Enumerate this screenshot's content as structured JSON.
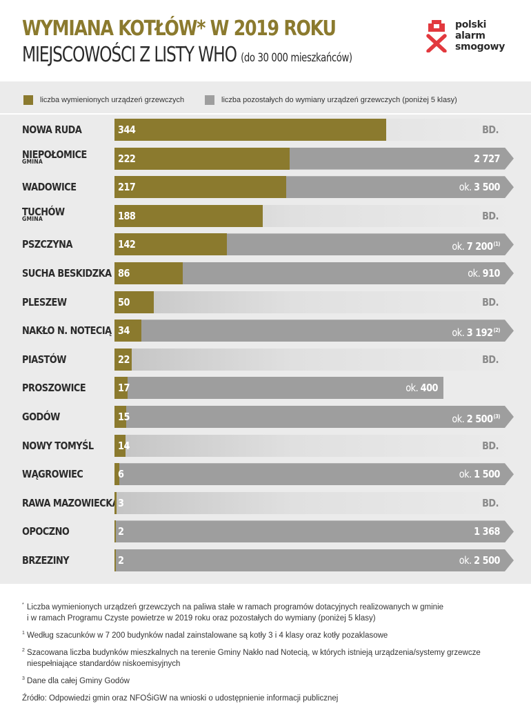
{
  "header": {
    "title_main": "WYMIANA KOTŁÓW* W 2019 ROKU",
    "title_sub": "MIEJSCOWOŚCI Z LISTY WHO",
    "title_sub_note": "(do 30 000 mieszkańców)",
    "logo_lines": [
      "polski",
      "alarm",
      "smogowy"
    ]
  },
  "legend": {
    "replaced": "liczba wymienionych urządzeń grzewczych",
    "remaining": "liczba pozostałych do wymiany urządzeń grzewczych (poniżej 5 klasy)"
  },
  "colors": {
    "replaced": "#8b7a2e",
    "remaining": "#9e9e9e",
    "no_data": "#d4d4d4",
    "panel": "#ebebeb"
  },
  "chart_data": {
    "type": "bar",
    "orientation": "horizontal",
    "stacked": true,
    "series": [
      {
        "name": "liczba wymienionych urządzeń grzewczych",
        "values": [
          344,
          222,
          217,
          188,
          142,
          86,
          50,
          34,
          22,
          17,
          15,
          14,
          6,
          3,
          2,
          2
        ]
      },
      {
        "name": "liczba pozostałych do wymiany urządzeń grzewczych (poniżej 5 klasy)",
        "values": [
          null,
          2727,
          3500,
          null,
          7200,
          910,
          null,
          3192,
          null,
          400,
          2500,
          null,
          1500,
          null,
          1368,
          2500
        ]
      }
    ],
    "rows": [
      {
        "name": "NOWA RUDA",
        "replaced": 344,
        "remaining_text": "BD."
      },
      {
        "name": "NIEPOŁOMICE",
        "sub": "GMINA",
        "replaced": 222,
        "remaining_value": "2 727"
      },
      {
        "name": "WADOWICE",
        "replaced": 217,
        "remaining_prefix": "ok.",
        "remaining_value": "3 500"
      },
      {
        "name": "TUCHÓW",
        "sub": "GMINA",
        "replaced": 188,
        "remaining_text": "BD."
      },
      {
        "name": "PSZCZYNA",
        "replaced": 142,
        "remaining_prefix": "ok.",
        "remaining_value": "7 200",
        "note": "(1)"
      },
      {
        "name": "SUCHA BESKIDZKA",
        "replaced": 86,
        "remaining_prefix": "ok.",
        "remaining_value": "910"
      },
      {
        "name": "PLESZEW",
        "replaced": 50,
        "remaining_text": "BD."
      },
      {
        "name": "NAKŁO N. NOTECIĄ",
        "replaced": 34,
        "remaining_prefix": "ok.",
        "remaining_value": "3 192",
        "note": "(2)"
      },
      {
        "name": "PIASTÓW",
        "replaced": 22,
        "remaining_text": "BD."
      },
      {
        "name": "PROSZOWICE",
        "replaced": 17,
        "remaining_prefix": "ok.",
        "remaining_value": "400"
      },
      {
        "name": "GODÓW",
        "replaced": 15,
        "remaining_prefix": "ok.",
        "remaining_value": "2 500",
        "note": "(3)"
      },
      {
        "name": "NOWY TOMYŚL",
        "replaced": 14,
        "remaining_text": "BD."
      },
      {
        "name": "WĄGROWIEC",
        "replaced": 6,
        "remaining_prefix": "ok.",
        "remaining_value": "1 500"
      },
      {
        "name": "RAWA MAZOWIECKA",
        "replaced": 3,
        "remaining_text": "BD."
      },
      {
        "name": "OPOCZNO",
        "replaced": 2,
        "remaining_value": "1 368"
      },
      {
        "name": "BRZEZINY",
        "replaced": 2,
        "remaining_prefix": "ok.",
        "remaining_value": "2 500"
      }
    ],
    "legend_position": "top"
  },
  "footnotes": [
    {
      "mark": "*",
      "text": "Liczba wymienionych urządzeń grzewczych na paliwa stałe w ramach programów dotacyjnych realizowanych w gminie",
      "text2": "i w ramach Programu Czyste powietrze w 2019 roku oraz pozostałych do wymiany (poniżej 5 klasy)"
    },
    {
      "mark": "1",
      "text": "Według szacunków w 7 200 budynków nadal zainstalowane są kotły 3 i 4 klasy oraz kotły pozaklasowe"
    },
    {
      "mark": "2",
      "text": "Szacowana liczba budynków mieszkalnych na terenie Gminy Nakło nad Notecią, w których istnieją urządzenia/systemy grzewcze",
      "text2": "niespełniające standardów niskoemisyjnych"
    },
    {
      "mark": "3",
      "text": "Dane dla całej Gminy Godów"
    }
  ],
  "source": "Źródło: Odpowiedzi gmin oraz NFOŚiGW na wnioski o udostępnienie informacji publicznej"
}
